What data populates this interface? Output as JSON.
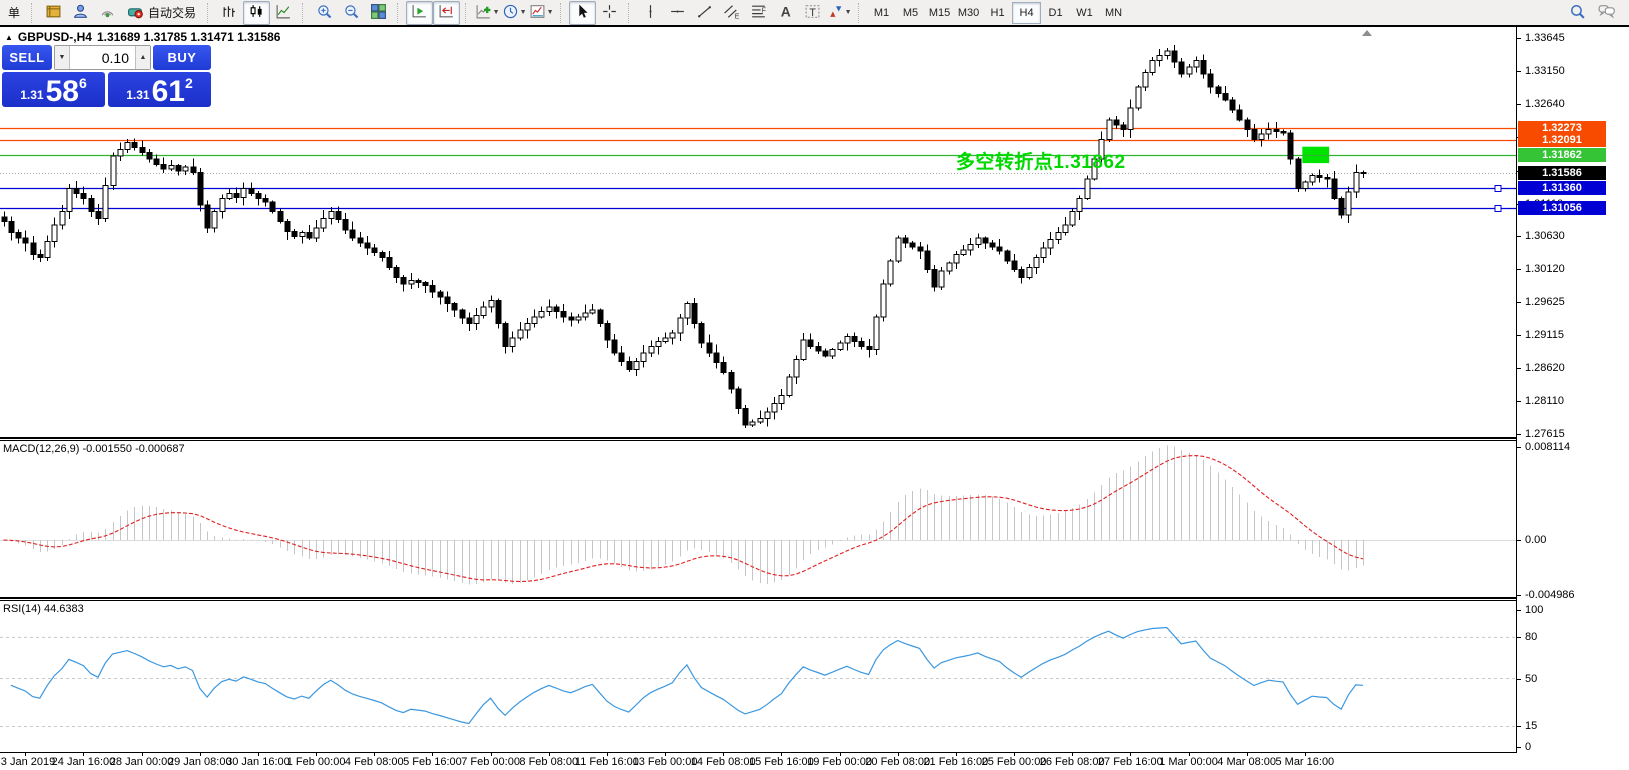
{
  "toolbar": {
    "partial_button_label": "单",
    "autotrading_label": "自动交易",
    "groups": [
      {
        "name": "terminal",
        "items": [
          {
            "name": "history-book-icon"
          },
          {
            "name": "profile-icon"
          },
          {
            "name": "signal-icon"
          },
          {
            "name": "autotrading-button",
            "label": "自动交易"
          }
        ]
      },
      {
        "name": "chart-type",
        "items": [
          {
            "name": "bar-chart-icon"
          },
          {
            "name": "candlestick-chart-icon",
            "active": true
          },
          {
            "name": "line-chart-icon"
          }
        ]
      },
      {
        "name": "zoom",
        "items": [
          {
            "name": "zoom-in-icon"
          },
          {
            "name": "zoom-out-icon"
          },
          {
            "name": "tile-windows-icon"
          }
        ]
      },
      {
        "name": "scroll",
        "items": [
          {
            "name": "auto-scroll-icon",
            "active": true
          },
          {
            "name": "chart-shift-icon",
            "active": true
          }
        ]
      },
      {
        "name": "insert",
        "items": [
          {
            "name": "indicators-icon",
            "caret": true
          },
          {
            "name": "periods-icon",
            "caret": true
          },
          {
            "name": "templates-icon",
            "caret": true
          }
        ]
      },
      {
        "name": "pointer",
        "items": [
          {
            "name": "cursor-icon",
            "active": true
          },
          {
            "name": "crosshair-icon"
          }
        ]
      },
      {
        "name": "draw",
        "items": [
          {
            "name": "vertical-line-icon"
          },
          {
            "name": "horizontal-line-icon"
          },
          {
            "name": "trendline-icon"
          },
          {
            "name": "channel-icon"
          },
          {
            "name": "fibonacci-icon"
          },
          {
            "name": "text-icon"
          },
          {
            "name": "text-label-icon"
          },
          {
            "name": "arrows-icon",
            "caret": true
          }
        ]
      }
    ],
    "timeframes": [
      {
        "label": "M1"
      },
      {
        "label": "M5"
      },
      {
        "label": "M15"
      },
      {
        "label": "M30"
      },
      {
        "label": "H1"
      },
      {
        "label": "H4",
        "active": true
      },
      {
        "label": "D1"
      },
      {
        "label": "W1"
      },
      {
        "label": "MN"
      }
    ],
    "right_icons": [
      {
        "name": "search-icon"
      },
      {
        "name": "chat-icon"
      }
    ],
    "caret_glyph": "▼"
  },
  "chart": {
    "marker": "▲",
    "title_symbol": "GBPUSD-,H4",
    "title_ohlc": "1.31689 1.31785 1.31471 1.31586"
  },
  "trade_panel": {
    "sell_label": "SELL",
    "buy_label": "BUY",
    "volume": "0.10",
    "sell_price": {
      "small": "1.31",
      "big": "58",
      "sup": "6"
    },
    "buy_price": {
      "small": "1.31",
      "big": "61",
      "sup": "2"
    },
    "spin_down_glyph": "▼",
    "spin_up_glyph": "▲"
  },
  "chart_data": {
    "type": "candlestick",
    "symbol": "GBPUSD-",
    "period": "H4",
    "bull_color": "#ffffff",
    "bear_color": "#000000",
    "y_axis": {
      "ticks": [
        1.33645,
        1.3315,
        1.3264,
        1.3213,
        1.3162,
        1.3111,
        1.3063,
        1.3012,
        1.29625,
        1.29115,
        1.2862,
        1.2811,
        1.27615
      ],
      "top_price": 1.33645,
      "bottom_price": 1.27615
    },
    "x_labels": [
      "3 Jan 2019",
      "24 Jan 16:00",
      "28 Jan 00:00",
      "29 Jan 08:00",
      "30 Jan 16:00",
      "1 Feb 00:00",
      "4 Feb 08:00",
      "5 Feb 16:00",
      "7 Feb 00:00",
      "8 Feb 08:00",
      "11 Feb 16:00",
      "13 Feb 00:00",
      "14 Feb 08:00",
      "15 Feb 16:00",
      "19 Feb 00:00",
      "20 Feb 08:00",
      "21 Feb 16:00",
      "25 Feb 00:00",
      "26 Feb 08:00",
      "27 Feb 16:00",
      "1 Mar 00:00",
      "4 Mar 08:00",
      "5 Mar 16:00"
    ],
    "label_every": 8,
    "first_label_index": 3,
    "closes": [
      1.3085,
      1.3068,
      1.306,
      1.3052,
      1.3035,
      1.303,
      1.3055,
      1.308,
      1.31,
      1.3135,
      1.3128,
      1.312,
      1.31,
      1.309,
      1.314,
      1.3185,
      1.3195,
      1.3205,
      1.3198,
      1.319,
      1.318,
      1.3172,
      1.3165,
      1.317,
      1.3162,
      1.3168,
      1.316,
      1.311,
      1.3075,
      1.31,
      1.312,
      1.3128,
      1.3122,
      1.3135,
      1.3128,
      1.312,
      1.3115,
      1.31,
      1.3085,
      1.307,
      1.3062,
      1.3068,
      1.306,
      1.3075,
      1.309,
      1.31,
      1.3088,
      1.3072,
      1.306,
      1.3052,
      1.3045,
      1.3038,
      1.303,
      1.3015,
      1.3,
      1.299,
      1.2995,
      1.2992,
      1.2988,
      1.2978,
      1.297,
      1.296,
      1.295,
      1.2938,
      1.293,
      1.2942,
      1.2955,
      1.2965,
      1.293,
      1.2895,
      1.2908,
      1.292,
      1.293,
      1.294,
      1.2948,
      1.2955,
      1.2948,
      1.294,
      1.2935,
      1.294,
      1.2946,
      1.295,
      1.293,
      1.2905,
      1.2885,
      1.2872,
      1.286,
      1.2872,
      1.2885,
      1.2895,
      1.2902,
      1.2908,
      1.2915,
      1.2938,
      1.296,
      1.293,
      1.29,
      1.2885,
      1.287,
      1.2855,
      1.283,
      1.28,
      1.2775,
      1.278,
      1.2785,
      1.2795,
      1.2808,
      1.282,
      1.2848,
      1.2875,
      1.2905,
      1.2895,
      1.2888,
      1.288,
      1.289,
      1.29,
      1.291,
      1.2902,
      1.2895,
      1.289,
      1.294,
      1.299,
      1.3025,
      1.306,
      1.3052,
      1.3046,
      1.304,
      1.3012,
      1.2985,
      1.301,
      1.3022,
      1.3035,
      1.3042,
      1.305,
      1.306,
      1.3052,
      1.3046,
      1.304,
      1.3025,
      1.3012,
      1.3,
      1.3015,
      1.303,
      1.3045,
      1.3058,
      1.3068,
      1.308,
      1.31,
      1.312,
      1.315,
      1.318,
      1.321,
      1.324,
      1.3232,
      1.3225,
      1.3258,
      1.329,
      1.3312,
      1.333,
      1.3338,
      1.3345,
      1.3328,
      1.331,
      1.332,
      1.333,
      1.331,
      1.329,
      1.328,
      1.327,
      1.3255,
      1.324,
      1.3225,
      1.321,
      1.3218,
      1.3225,
      1.3222,
      1.322,
      1.318,
      1.3135,
      1.3145,
      1.3155,
      1.3152,
      1.315,
      1.312,
      1.3095,
      1.313,
      1.316,
      1.31586
    ],
    "horizontal_lines": [
      {
        "price": 1.32273,
        "label": "1.32273",
        "color": "#f84b00",
        "label_bg": "#f84b00",
        "style": "solid"
      },
      {
        "price": 1.32091,
        "label": "1.32091",
        "color": "#f84b00",
        "label_bg": "#f84b00",
        "style": "solid"
      },
      {
        "price": 1.31862,
        "label": "1.31862",
        "color": "#2fb52f",
        "label_bg": "#35c435",
        "style": "solid"
      },
      {
        "price": 1.31586,
        "label": "1.31586",
        "color": "#a6a6a6",
        "label_bg": "#000000",
        "style": "dotted",
        "role": "bid"
      },
      {
        "price": 1.3136,
        "label": "1.31360",
        "color": "#0000d4",
        "label_bg": "#0000d4",
        "style": "solid",
        "handle": true
      },
      {
        "price": 1.31056,
        "label": "1.31056",
        "color": "#0000d4",
        "label_bg": "#0000d4",
        "style": "solid",
        "handle": true
      }
    ],
    "annotations": {
      "pivot_text": {
        "text": "多空转折点1.31862",
        "color": "#00d800",
        "anchor_index": 131,
        "anchor_price": 1.3177
      },
      "highlight_box": {
        "color": "#00e400",
        "start_index": 179,
        "end_index": 182,
        "price_top": 1.3199,
        "price_bottom": 1.3174
      }
    },
    "indicators": [
      {
        "name": "MACD",
        "label": "MACD(12,26,9) -0.001550 -0.000687",
        "params": [
          12,
          26,
          9
        ],
        "values_display": [
          "-0.001550",
          "-0.000687"
        ],
        "histogram_color": "#c6c6c6",
        "signal_color": "#e02020",
        "scale": {
          "max": 0.008114,
          "zero": 0.0,
          "min": -0.004986
        },
        "scale_labels": [
          "0.008114",
          "0.00",
          "-0.004986"
        ]
      },
      {
        "name": "RSI",
        "label": "RSI(14) 44.6383",
        "params": [
          14
        ],
        "value_display": "44.6383",
        "line_color": "#3b97df",
        "levels": [
          100,
          80,
          50,
          15,
          0
        ],
        "dashed_levels": [
          80,
          50,
          15
        ]
      }
    ]
  }
}
